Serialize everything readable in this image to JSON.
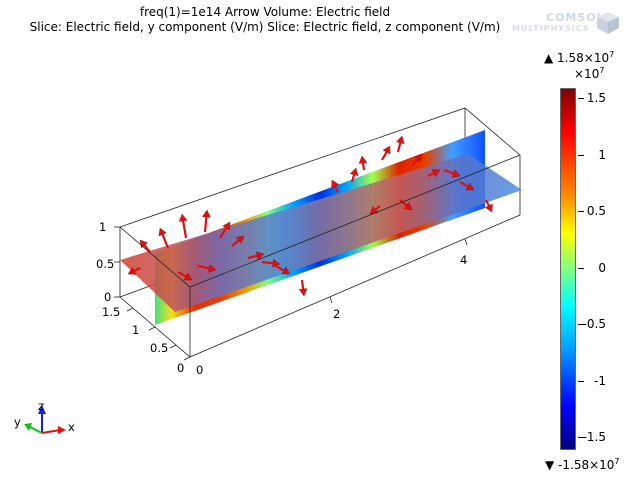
{
  "header": {
    "line1": "freq(1)=1e14   Arrow Volume: Electric field",
    "line2": "Slice: Electric field, y component (V/m)  Slice: Electric field, z component (V/m)"
  },
  "logo": {
    "line1": "COMSOL",
    "line2": "MULTIPHYSICS"
  },
  "axes": {
    "z_ticks": [
      "1",
      "0.5",
      "0"
    ],
    "y_ticks": [
      "1.5",
      "1",
      "0.5",
      "0"
    ],
    "x_ticks": [
      "0",
      "2",
      "4"
    ],
    "triad": {
      "x": "x",
      "y": "y",
      "z": "z"
    }
  },
  "colorbar": {
    "max_label": "▲ 1.58×10",
    "max_exp": "7",
    "scale_label": "×10",
    "scale_exp": "7",
    "min_label": "▼ -1.58×10",
    "min_exp": "7",
    "ticks": [
      "1.5",
      "1",
      "0.5",
      "0",
      "-0.5",
      "-1",
      "-1.5"
    ],
    "colormap": [
      "#00007f",
      "#0000ff",
      "#00a0ff",
      "#00ffff",
      "#7fff7f",
      "#ffff00",
      "#ff9000",
      "#ff0000",
      "#7f0000"
    ]
  },
  "colors": {
    "arrow": "#e01010",
    "horizontal_slice": "#9aa0c0"
  }
}
